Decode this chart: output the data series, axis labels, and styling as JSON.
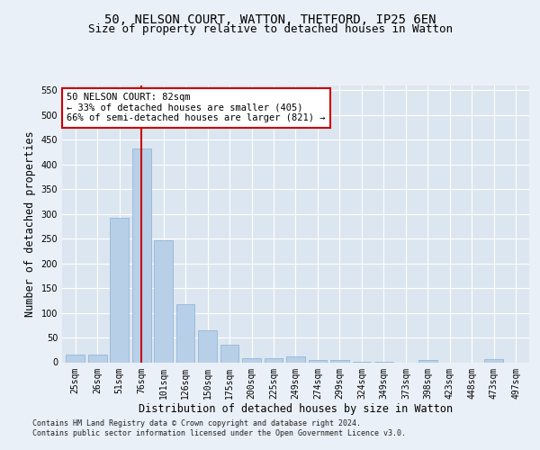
{
  "title1": "50, NELSON COURT, WATTON, THETFORD, IP25 6EN",
  "title2": "Size of property relative to detached houses in Watton",
  "xlabel": "Distribution of detached houses by size in Watton",
  "ylabel": "Number of detached properties",
  "categories": [
    "25sqm",
    "26sqm",
    "51sqm",
    "76sqm",
    "101sqm",
    "126sqm",
    "150sqm",
    "175sqm",
    "200sqm",
    "225sqm",
    "249sqm",
    "274sqm",
    "299sqm",
    "324sqm",
    "349sqm",
    "373sqm",
    "398sqm",
    "423sqm",
    "448sqm",
    "473sqm",
    "497sqm"
  ],
  "values": [
    15,
    15,
    293,
    433,
    247,
    118,
    65,
    36,
    9,
    9,
    12,
    5,
    4,
    1,
    1,
    0,
    4,
    0,
    0,
    6,
    0
  ],
  "bar_color": "#b8cfe8",
  "bar_edge_color": "#8ab0d4",
  "vline_index": 3,
  "vline_color": "#cc0000",
  "annotation_text": "50 NELSON COURT: 82sqm\n← 33% of detached houses are smaller (405)\n66% of semi-detached houses are larger (821) →",
  "annotation_box_facecolor": "#ffffff",
  "annotation_box_edgecolor": "#cc0000",
  "ylim": [
    0,
    560
  ],
  "yticks": [
    0,
    50,
    100,
    150,
    200,
    250,
    300,
    350,
    400,
    450,
    500,
    550
  ],
  "footer1": "Contains HM Land Registry data © Crown copyright and database right 2024.",
  "footer2": "Contains public sector information licensed under the Open Government Licence v3.0.",
  "bg_color": "#dce6f0",
  "fig_bg_color": "#eaf0f7",
  "title1_fontsize": 10,
  "title2_fontsize": 9,
  "tick_fontsize": 7,
  "xlabel_fontsize": 8.5,
  "ylabel_fontsize": 8.5,
  "ann_fontsize": 7.5
}
